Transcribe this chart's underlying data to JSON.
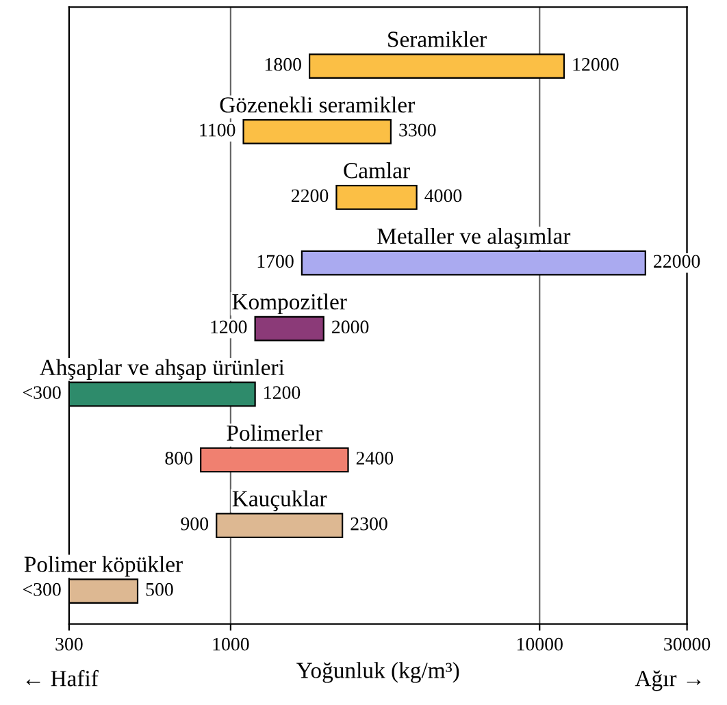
{
  "chart_data": {
    "type": "bar",
    "orientation": "horizontal",
    "log": "x",
    "categories": [
      "Seramikler",
      "Gözenekli seramikler",
      "Camlar",
      "Metaller ve alaşımlar",
      "Kompozitler",
      "Ahşaplar ve ahşap ürünleri",
      "Polimerler",
      "Kauçuklar",
      "Polimer köpükler"
    ],
    "base": [
      1800,
      1100,
      2200,
      1700,
      1200,
      300,
      800,
      900,
      300
    ],
    "values": [
      10200,
      2200,
      1800,
      20300,
      800,
      900,
      1600,
      1400,
      200
    ],
    "colors": [
      "#fbbf45",
      "#fbbf45",
      "#fbbf45",
      "#aaaaf0",
      "#8b3a78",
      "#2e8b6b",
      "#f08070",
      "#ddb892",
      "#ddb892"
    ],
    "xlim": [
      300,
      30000
    ],
    "xticks": [
      300,
      1000,
      10000,
      30000
    ],
    "grid": "x",
    "tick_labels": "x",
    "xlabel": "Yoğunluk (kg/m³)",
    "annotations": [
      "← Hafif",
      "Ağır →",
      {
        "text": "1800",
        "x": 1800,
        "y": "Seramikler"
      },
      {
        "text": "12000",
        "x": 12000,
        "y": "Seramikler"
      },
      {
        "text": "1100",
        "x": 1100,
        "y": "Gözenekli seramikler"
      },
      {
        "text": "3300",
        "x": 3300,
        "y": "Gözenekli seramikler"
      },
      {
        "text": "2200",
        "x": 2200,
        "y": "Camlar"
      },
      {
        "text": "4000",
        "x": 4000,
        "y": "Camlar"
      },
      {
        "text": "1700",
        "x": 1700,
        "y": "Metaller ve alaşımlar"
      },
      {
        "text": "22000",
        "x": 22000,
        "y": "Metaller ve alaşımlar"
      },
      {
        "text": "1200",
        "x": 1200,
        "y": "Kompozitler"
      },
      {
        "text": "2000",
        "x": 2000,
        "y": "Kompozitler"
      },
      {
        "text": "<300",
        "x": 300,
        "y": "Ahşaplar ve ahşap ürünleri"
      },
      {
        "text": "1200",
        "x": 1200,
        "y": "Ahşaplar ve ahşap ürünleri"
      },
      {
        "text": "800",
        "x": 800,
        "y": "Polimerler"
      },
      {
        "text": "2400",
        "x": 2400,
        "y": "Polimerler"
      },
      {
        "text": "900",
        "x": 900,
        "y": "Kauçuklar"
      },
      {
        "text": "2300",
        "x": 2300,
        "y": "Kauçuklar"
      },
      {
        "text": "<300",
        "x": 300,
        "y": "Polimer köpükler"
      },
      {
        "text": "500",
        "x": 500,
        "y": "Polimer köpükler"
      }
    ]
  }
}
